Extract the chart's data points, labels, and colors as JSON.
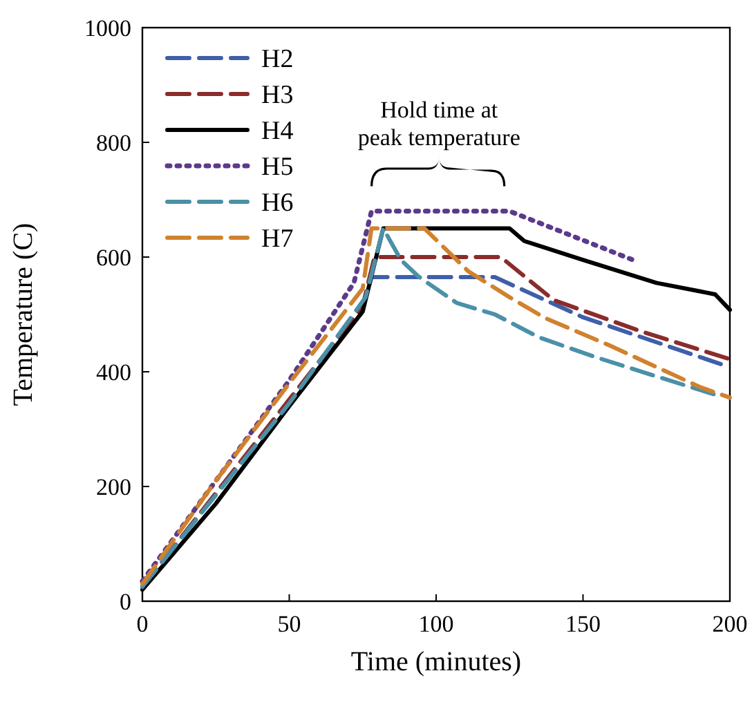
{
  "chart_data": {
    "type": "line",
    "xlabel": "Time (minutes)",
    "ylabel": "Temperature (C)",
    "xlim": [
      0,
      200
    ],
    "xticks": [
      0,
      50,
      100,
      150,
      200
    ],
    "ylim": [
      0,
      1000
    ],
    "yticks": [
      0,
      200,
      400,
      600,
      800,
      1000
    ],
    "grid": false,
    "legend": "top left",
    "annotations": [
      {
        "text": "Hold time at peak temperature",
        "x": 101,
        "y": 680
      }
    ],
    "series": [
      {
        "name": "H2",
        "color": "#3f5fa8",
        "line_style": "dashed",
        "x": [
          0,
          75,
          78,
          120,
          150,
          200
        ],
        "values": [
          25,
          510,
          565,
          565,
          495,
          408
        ]
      },
      {
        "name": "H3",
        "color": "#8b2c2c",
        "line_style": "dashed",
        "x": [
          0,
          75,
          79,
          122,
          140,
          170,
          200
        ],
        "values": [
          25,
          515,
          600,
          600,
          525,
          470,
          422
        ]
      },
      {
        "name": "H4",
        "color": "#000000",
        "line_style": "solid",
        "x": [
          0,
          25,
          50,
          75,
          82,
          125,
          130,
          150,
          175,
          195,
          200
        ],
        "values": [
          20,
          170,
          340,
          505,
          650,
          650,
          628,
          595,
          555,
          535,
          508
        ]
      },
      {
        "name": "H5",
        "color": "#5b3a8c",
        "line_style": "dotted",
        "x": [
          0,
          25,
          50,
          72,
          78,
          125,
          167
        ],
        "values": [
          35,
          210,
          385,
          555,
          680,
          680,
          595
        ]
      },
      {
        "name": "H6",
        "color": "#4a90a8",
        "line_style": "dashed",
        "x": [
          0,
          25,
          50,
          76,
          82,
          88,
          94,
          107,
          120,
          135,
          154,
          175,
          195
        ],
        "values": [
          25,
          185,
          345,
          530,
          650,
          595,
          566,
          520,
          500,
          460,
          426,
          392,
          360
        ]
      },
      {
        "name": "H7",
        "color": "#d0822e",
        "line_style": "dashed",
        "x": [
          0,
          25,
          50,
          75,
          78,
          96,
          111,
          125,
          137,
          159,
          190,
          200
        ],
        "values": [
          30,
          210,
          380,
          545,
          650,
          650,
          575,
          530,
          494,
          446,
          373,
          355
        ]
      }
    ]
  }
}
